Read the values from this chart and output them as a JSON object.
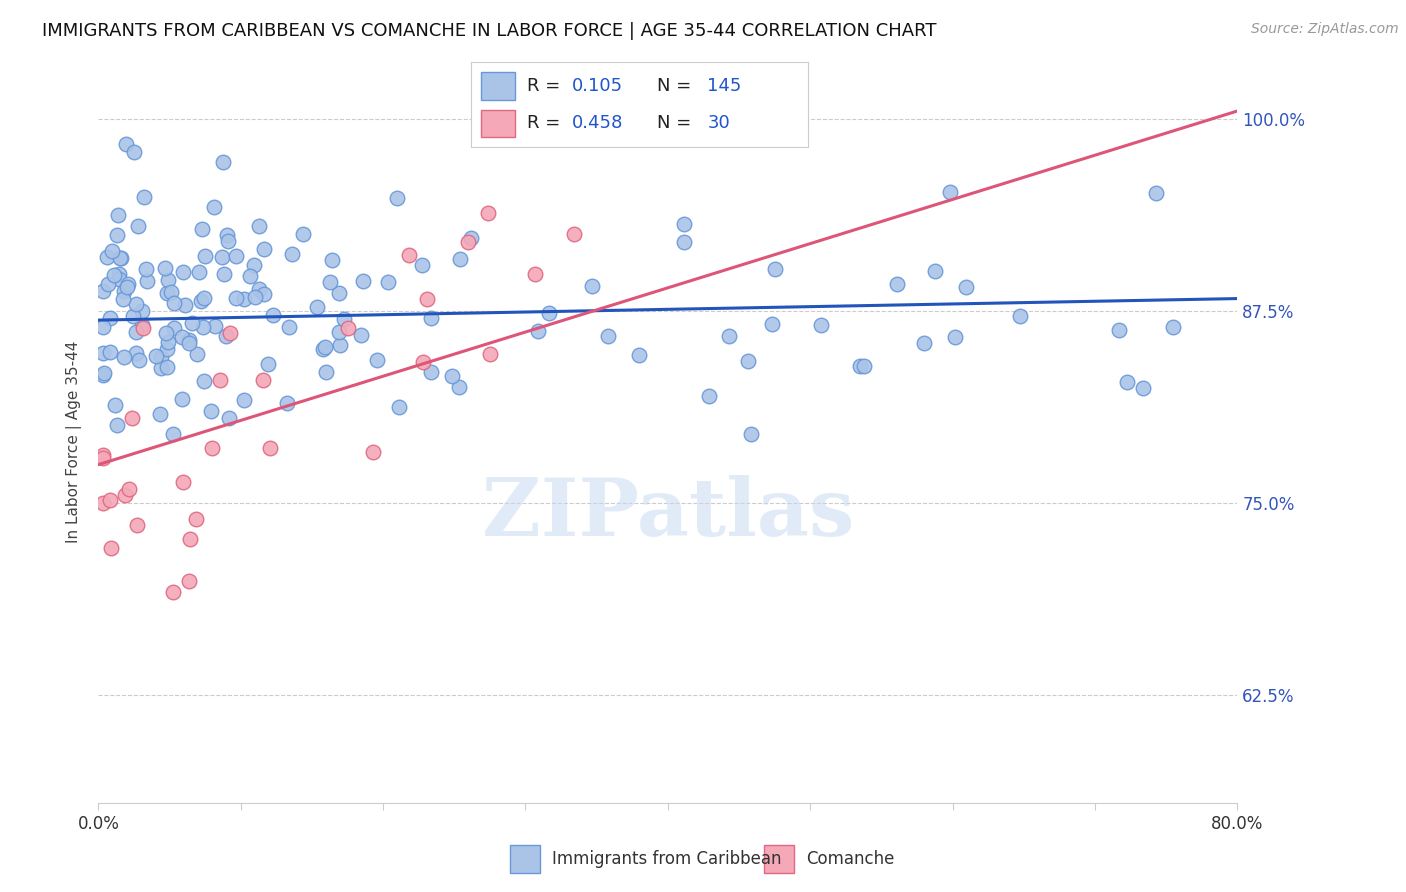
{
  "title": "IMMIGRANTS FROM CARIBBEAN VS COMANCHE IN LABOR FORCE | AGE 35-44 CORRELATION CHART",
  "source": "Source: ZipAtlas.com",
  "ylabel": "In Labor Force | Age 35-44",
  "xlim": [
    0.0,
    0.8
  ],
  "ylim": [
    0.555,
    1.025
  ],
  "y_ticks": [
    0.625,
    0.75,
    0.875,
    1.0
  ],
  "y_tick_labels": [
    "62.5%",
    "75.0%",
    "87.5%",
    "100.0%"
  ],
  "blue_color": "#aac4e8",
  "blue_edge_color": "#6898d8",
  "pink_color": "#f4a8b8",
  "pink_edge_color": "#e06880",
  "blue_line_color": "#2255bb",
  "pink_line_color": "#dd5577",
  "watermark": "ZIPatlas",
  "blue_trend_x0": 0.0,
  "blue_trend_x1": 0.8,
  "blue_trend_y0": 0.869,
  "blue_trend_y1": 0.883,
  "pink_trend_x0": 0.0,
  "pink_trend_x1": 0.8,
  "pink_trend_y0": 0.775,
  "pink_trend_y1": 1.005,
  "grid_color": "#cccccc",
  "grid_linestyle": "--",
  "spine_color": "#cccccc",
  "title_fontsize": 13,
  "tick_label_fontsize": 12,
  "right_tick_color": "#3355bb",
  "source_color": "#999999"
}
